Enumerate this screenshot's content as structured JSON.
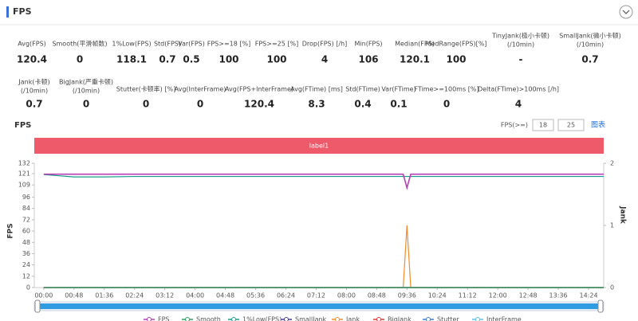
{
  "header": {
    "title": "FPS"
  },
  "stats": [
    [
      {
        "label": "Avg(FPS)",
        "value": 120.4
      },
      {
        "label": "Smooth(平滑帧数)",
        "value": 0
      },
      {
        "label": "1%Low(FPS)",
        "value": 118.1
      },
      {
        "label": "Std(FPS)",
        "value": 0.7
      },
      {
        "label": "Var(FPS)",
        "value": 0.5
      },
      {
        "label": "FPS>=18 [%]",
        "value": 100
      },
      {
        "label": "FPS>=25 [%]",
        "value": 100
      },
      {
        "label": "Drop(FPS) [/h]",
        "value": 4
      },
      {
        "label": "Min(FPS)",
        "value": 106
      },
      {
        "label": "Median(FPS)",
        "value": 120.1
      },
      {
        "label": "MedRange(FPS)[%]",
        "value": 100
      },
      {
        "label": [
          "TinyJank(极小卡顿)",
          "(/10min)"
        ],
        "value": "-"
      },
      {
        "label": [
          "SmallJank(微小卡顿)",
          "(/10min)"
        ],
        "value": 0.7
      }
    ],
    [
      {
        "label": [
          "Jank(卡顿)",
          "(/10min)"
        ],
        "value": 0.7
      },
      {
        "label": [
          "BigJank(严重卡顿)",
          "(/10min)"
        ],
        "value": 0
      },
      {
        "label": "Stutter(卡顿率) [%]",
        "value": 0
      },
      {
        "label": "Avg(InterFrame)",
        "value": 0
      },
      {
        "label": "Avg(FPS+InterFrame)",
        "value": 120.4
      },
      {
        "label": "Avg(FTime) [ms]",
        "value": 8.3
      },
      {
        "label": "Std(FTime)",
        "value": 0.4
      },
      {
        "label": "Var(FTime)",
        "value": 0.1
      },
      {
        "label": "FTime>=100ms [%]",
        "value": 0
      },
      {
        "label": "Delta(FTime)>100ms [/h]",
        "value": 4
      }
    ]
  ],
  "chart_header": {
    "title": "FPS",
    "threshold_label": "FPS(>=)",
    "thresholds": [
      18,
      25
    ],
    "link": "图表"
  },
  "chart_data": {
    "type": "line",
    "band_label": "label1",
    "ylabel": "FPS",
    "y2label": "Jank",
    "x": [
      0,
      48,
      96,
      144,
      192,
      240,
      288,
      336,
      384,
      432,
      480,
      528,
      570,
      576,
      582,
      624,
      672,
      720,
      768,
      816,
      864,
      888
    ],
    "xlim": [
      -15,
      888
    ],
    "xticks": [
      {
        "value": 0,
        "label": "00:00"
      },
      {
        "value": 48,
        "label": "00:48"
      },
      {
        "value": 96,
        "label": "01:36"
      },
      {
        "value": 144,
        "label": "02:24"
      },
      {
        "value": 192,
        "label": "03:12"
      },
      {
        "value": 240,
        "label": "04:00"
      },
      {
        "value": 288,
        "label": "04:48"
      },
      {
        "value": 336,
        "label": "05:36"
      },
      {
        "value": 384,
        "label": "06:24"
      },
      {
        "value": 432,
        "label": "07:12"
      },
      {
        "value": 480,
        "label": "08:00"
      },
      {
        "value": 528,
        "label": "08:48"
      },
      {
        "value": 576,
        "label": "09:36"
      },
      {
        "value": 624,
        "label": "10:24"
      },
      {
        "value": 672,
        "label": "11:12"
      },
      {
        "value": 720,
        "label": "12:00"
      },
      {
        "value": 768,
        "label": "12:48"
      },
      {
        "value": 816,
        "label": "13:36"
      },
      {
        "value": 864,
        "label": "14:24"
      }
    ],
    "ylim": [
      0,
      132
    ],
    "yticks": [
      0,
      12,
      24,
      36,
      48,
      60,
      72,
      84,
      96,
      109,
      121,
      132
    ],
    "y2lim": [
      0,
      2
    ],
    "y2ticks": [
      0,
      1,
      2
    ],
    "series": [
      {
        "name": "FPS",
        "color": "#b73fb7",
        "values": [
          120.4,
          120.4,
          120.4,
          120.4,
          120.4,
          120.4,
          120.4,
          120.4,
          120.4,
          120.4,
          120.4,
          120.4,
          120.4,
          106,
          120.4,
          120.4,
          120.4,
          120.4,
          120.4,
          120.4,
          120.4,
          120.4
        ]
      },
      {
        "name": "Smooth",
        "color": "#2ca05a",
        "axis": "y2",
        "values": [
          0,
          0,
          0,
          0,
          0,
          0,
          0,
          0,
          0,
          0,
          0,
          0,
          0,
          0,
          0,
          0,
          0,
          0,
          0,
          0,
          0,
          0
        ]
      },
      {
        "name": "1%Low(FPS)",
        "color": "#1a9c8c",
        "values": [
          120,
          117.5,
          117.5,
          118,
          118,
          118,
          118,
          118,
          118,
          118,
          118,
          118,
          118,
          118,
          118,
          118,
          118,
          118,
          118,
          118,
          118,
          118
        ]
      },
      {
        "name": "SmallJank",
        "color": "#4b3a9a",
        "axis": "y2",
        "values": [
          0,
          0,
          0,
          0,
          0,
          0,
          0,
          0,
          0,
          0,
          0,
          0,
          0,
          0,
          0,
          0,
          0,
          0,
          0,
          0,
          0,
          0
        ]
      },
      {
        "name": "Jank",
        "color": "#f08a2c",
        "axis": "y2",
        "values": [
          0,
          0,
          0,
          0,
          0,
          0,
          0,
          0,
          0,
          0,
          0,
          0,
          0,
          1,
          0,
          0,
          0,
          0,
          0,
          0,
          0,
          0
        ]
      },
      {
        "name": "BigJank",
        "color": "#e0383a",
        "axis": "y2",
        "values": [
          0,
          0,
          0,
          0,
          0,
          0,
          0,
          0,
          0,
          0,
          0,
          0,
          0,
          0,
          0,
          0,
          0,
          0,
          0,
          0,
          0,
          0
        ]
      },
      {
        "name": "Stutter",
        "color": "#3a7fd0",
        "axis": "y2",
        "values": [
          0,
          0,
          0,
          0,
          0,
          0,
          0,
          0,
          0,
          0,
          0,
          0,
          0,
          0,
          0,
          0,
          0,
          0,
          0,
          0,
          0,
          0
        ]
      },
      {
        "name": "InterFrame",
        "color": "#5bc0e8",
        "values": [
          0,
          0,
          0,
          0,
          0,
          0,
          0,
          0,
          0,
          0,
          0,
          0,
          0,
          0,
          0,
          0,
          0,
          0,
          0,
          0,
          0,
          0
        ]
      }
    ]
  }
}
